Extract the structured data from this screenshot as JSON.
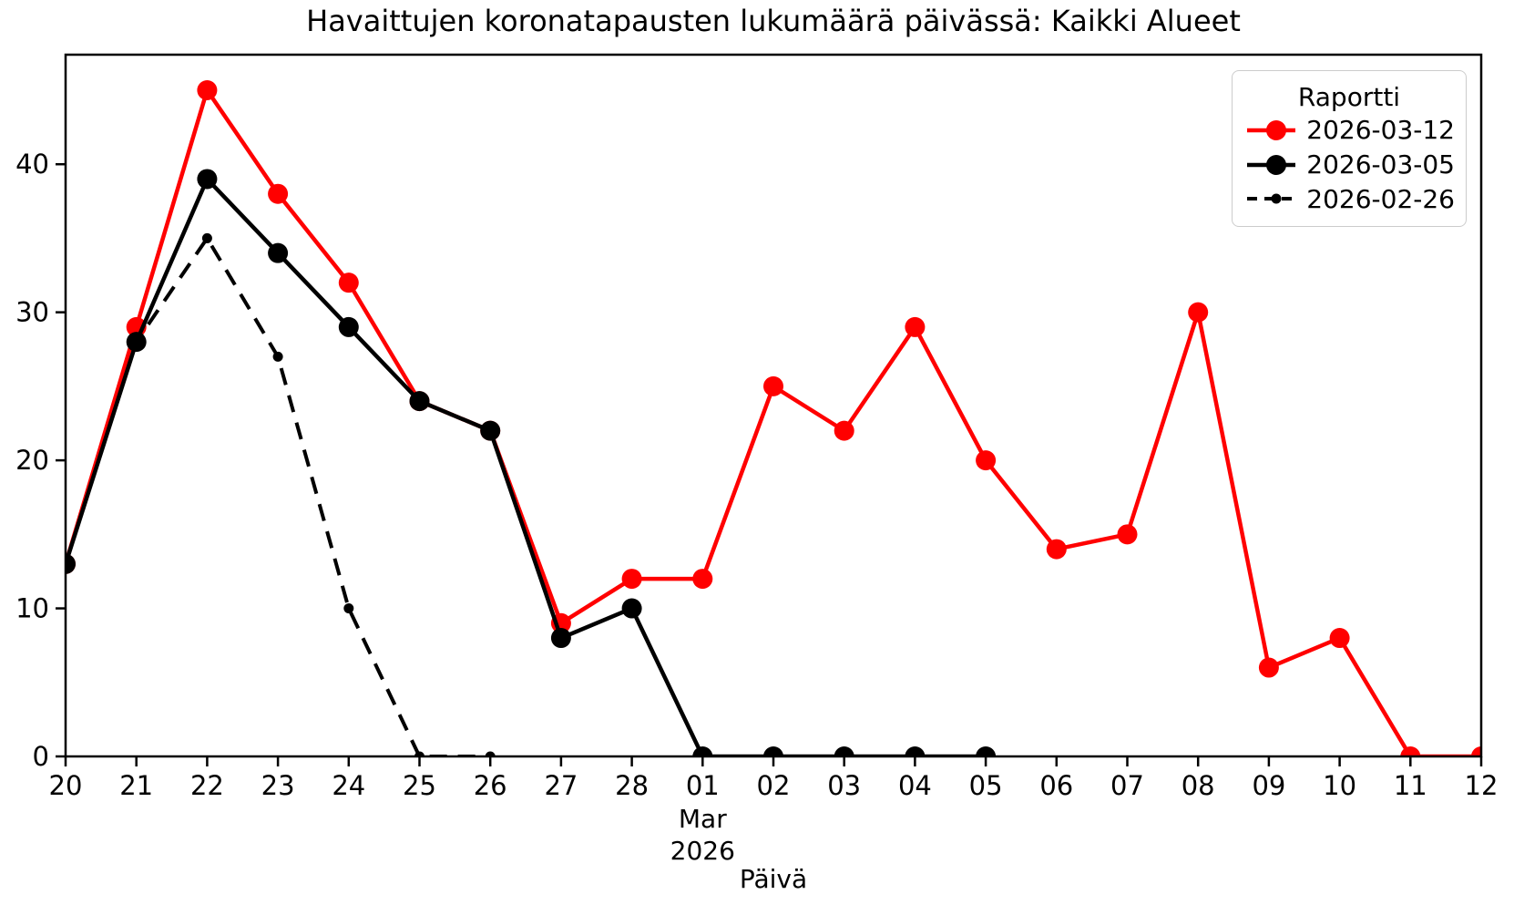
{
  "figure": {
    "background": "#ffffff"
  },
  "chart_data": {
    "type": "line",
    "title": "Havaittujen koronatapausten lukumäärä päivässä: Kaikki Alueet",
    "xlabel": "Päivä",
    "ylabel": "",
    "categories": [
      "20",
      "21",
      "22",
      "23",
      "24",
      "25",
      "26",
      "27",
      "28",
      "01",
      "02",
      "03",
      "04",
      "05",
      "06",
      "07",
      "08",
      "09",
      "10",
      "11",
      "12"
    ],
    "x_secondary": {
      "tick_index": 9,
      "lines": [
        "Mar",
        "2026"
      ]
    },
    "y_ticks": [
      0,
      10,
      20,
      30,
      40
    ],
    "ylim": [
      0,
      47.4
    ],
    "grid": false,
    "legend": {
      "title": "Raportti",
      "position": "upper-right"
    },
    "series": [
      {
        "name": "2026-03-12",
        "color": "#ff0000",
        "line_style": "solid",
        "line_width": 4.5,
        "marker": "circle",
        "marker_size": 11,
        "values": [
          13,
          29,
          45,
          38,
          32,
          24,
          22,
          9,
          12,
          12,
          25,
          22,
          29,
          20,
          14,
          15,
          30,
          6,
          8,
          0,
          0
        ]
      },
      {
        "name": "2026-03-05",
        "color": "#000000",
        "line_style": "solid",
        "line_width": 4.5,
        "marker": "circle",
        "marker_size": 11,
        "values": [
          13,
          28,
          39,
          34,
          29,
          24,
          22,
          8,
          10,
          0,
          0,
          0,
          0,
          0
        ]
      },
      {
        "name": "2026-02-26",
        "color": "#000000",
        "line_style": "dashed",
        "dash_pattern": "19 12",
        "line_width": 4,
        "marker": "circle",
        "marker_size": 5.5,
        "values": [
          13,
          28,
          35,
          27,
          10,
          0,
          0
        ]
      }
    ]
  }
}
